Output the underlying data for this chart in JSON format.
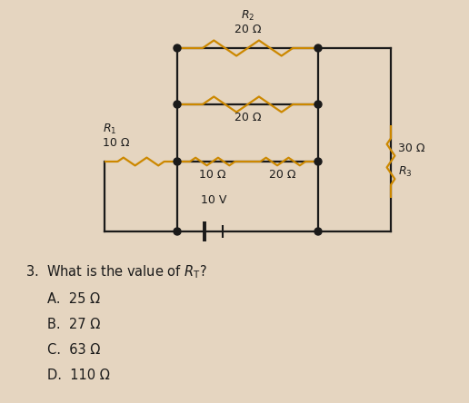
{
  "bg_color": "#e5d5c0",
  "resistor_color": "#cc8800",
  "wire_color": "#1a1a1a",
  "dot_color": "#1a1a1a",
  "text_color": "#1a1a1a",
  "question": "3.  What is the value of $R_\\mathrm{T}$?",
  "choices": [
    "A.  25 Ω",
    "B.  27 Ω",
    "C.  63 Ω",
    "D.  110 Ω"
  ],
  "R1_label": "$R_1$",
  "R1_val": "10 Ω",
  "R2_label": "$R_2$",
  "R2_top_val": "20 Ω",
  "R2_mid_val": "20 Ω",
  "R_bot_left_val": "10 Ω",
  "R_bot_mid_val": "20 Ω",
  "R3_val": "30 Ω",
  "R3_label": "$R_3$",
  "V_val": "10 V"
}
